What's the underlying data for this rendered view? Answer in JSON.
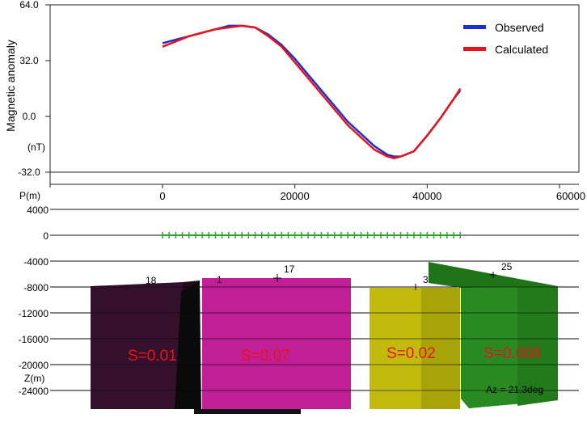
{
  "chart_data": [
    {
      "type": "line",
      "ylabel": "Magnetic anomaly",
      "yunit": "(nT)",
      "xlim": [
        -12000,
        60000
      ],
      "ylim": [
        -32,
        64
      ],
      "yticks": [
        "64.0",
        "32.0",
        "0.0",
        "-32.0"
      ],
      "xticks": [
        "0",
        "20000",
        "40000",
        "60000"
      ],
      "grid": false,
      "legend_position": "top-right",
      "series": [
        {
          "name": "Observed",
          "color": "#1a2fd6",
          "x": [
            0,
            2000,
            4000,
            6000,
            8000,
            10000,
            12000,
            14000,
            16000,
            18000,
            20000,
            22000,
            24000,
            26000,
            28000,
            30000,
            32000,
            34000,
            35000,
            36000,
            38000,
            40000,
            42000,
            44000,
            45000
          ],
          "y": [
            42,
            44,
            46,
            48,
            50,
            52,
            52,
            51,
            47,
            41,
            33,
            24,
            15,
            6,
            -3,
            -10,
            -17,
            -22,
            -23,
            -23,
            -20,
            -11,
            -1,
            10,
            15
          ]
        },
        {
          "name": "Calculated",
          "color": "#e8131b",
          "x": [
            0,
            2000,
            4000,
            6000,
            8000,
            10000,
            12000,
            14000,
            16000,
            18000,
            20000,
            22000,
            24000,
            26000,
            28000,
            30000,
            32000,
            34000,
            35000,
            36000,
            38000,
            40000,
            42000,
            44000,
            45000
          ],
          "y": [
            40,
            43,
            46,
            48,
            50,
            51,
            52,
            51,
            46,
            40,
            31,
            22,
            13,
            4,
            -5,
            -12,
            -19,
            -23,
            -24,
            -23,
            -20,
            -11,
            -1,
            10,
            16
          ]
        }
      ]
    },
    {
      "type": "cross-section",
      "xlabel": "P(m)",
      "ylabel": "Z(m)",
      "ylim": [
        -26000,
        4000
      ],
      "yticks": [
        "4000",
        "0",
        "-4000",
        "-8000",
        "-12000",
        "-16000",
        "-20000",
        "-24000"
      ],
      "station_line": {
        "x_start": 0,
        "x_end": 45000,
        "depth": 0,
        "count": 46,
        "color": "#2ea62e"
      },
      "bodies": [
        {
          "id": "18",
          "label": "S=0.01",
          "color": "#35102a"
        },
        {
          "id": "1",
          "label": "",
          "color": "#0c0c0c"
        },
        {
          "id": "17",
          "label": "S=0.07",
          "color": "#c01f96"
        },
        {
          "id": "3",
          "label": "S=0.02",
          "color": "#c2bb0e"
        },
        {
          "id": "25",
          "label": "S=0.008",
          "color": "#2a8a22"
        }
      ],
      "azimuth_label": "Az = 21.3deg",
      "label_color": "#e8131b"
    }
  ]
}
